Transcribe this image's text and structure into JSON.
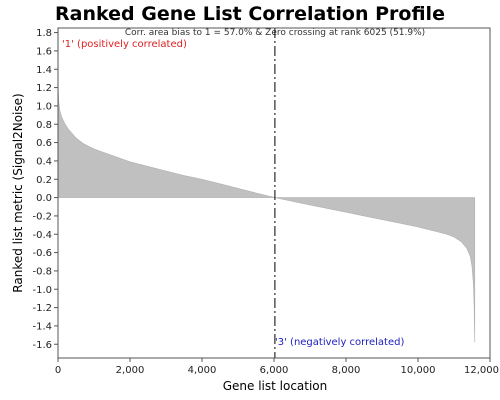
{
  "chart_data": {
    "type": "area",
    "title": "Ranked Gene List Correlation Profile",
    "annotation": "Corr. area bias to 1 = 57.0% & Zero crossing at rank 6025 (51.9%)",
    "positive_label": "'1' (positively correlated)",
    "negative_label": "'3' (negatively correlated)",
    "xlabel": "Gene list location",
    "ylabel": "Ranked list metric (Signal2Noise)",
    "xlim": [
      0,
      12000
    ],
    "ylim": [
      -1.75,
      1.85
    ],
    "x_ticks": [
      0,
      2000,
      4000,
      6000,
      8000,
      10000,
      12000
    ],
    "x_tick_labels": [
      "0",
      "2,000",
      "4,000",
      "6,000",
      "8,000",
      "10,000",
      "12,000"
    ],
    "y_ticks": [
      1.8,
      1.6,
      1.4,
      1.2,
      1.0,
      0.8,
      0.6,
      0.4,
      0.2,
      0.0,
      -0.2,
      -0.4,
      -0.6,
      -0.8,
      -1.0,
      -1.2,
      -1.4,
      -1.6
    ],
    "y_tick_labels": [
      "1.8",
      "1.6",
      "1.4",
      "1.2",
      "1.0",
      "0.8",
      "0.6",
      "0.4",
      "0.2",
      "0.0",
      "-0.2",
      "-0.4",
      "-0.6",
      "-0.8",
      "-1.0",
      "-1.2",
      "-1.4",
      "-1.6"
    ],
    "zero_crossing_rank": 6025,
    "fill_color": "#c0c0c0",
    "marker_line_color": "#000000",
    "grid": false,
    "series": [
      {
        "x": [
          0,
          5,
          20,
          50,
          100,
          200,
          300,
          500,
          700,
          1000,
          1500,
          2000,
          2500,
          3000,
          3500,
          4000,
          4500,
          5000,
          5500,
          6025,
          6500,
          7000,
          7500,
          8000,
          8500,
          9000,
          9500,
          10000,
          10500,
          10800,
          11000,
          11200,
          11350,
          11450,
          11500,
          11540,
          11560,
          11570,
          11577
        ],
        "values": [
          1.27,
          1.2,
          1.05,
          0.95,
          0.88,
          0.8,
          0.74,
          0.65,
          0.59,
          0.53,
          0.46,
          0.39,
          0.34,
          0.29,
          0.24,
          0.2,
          0.15,
          0.1,
          0.05,
          0.0,
          -0.04,
          -0.08,
          -0.12,
          -0.16,
          -0.2,
          -0.24,
          -0.28,
          -0.32,
          -0.37,
          -0.4,
          -0.43,
          -0.48,
          -0.55,
          -0.64,
          -0.75,
          -0.95,
          -1.2,
          -1.45,
          -1.58
        ]
      }
    ]
  }
}
